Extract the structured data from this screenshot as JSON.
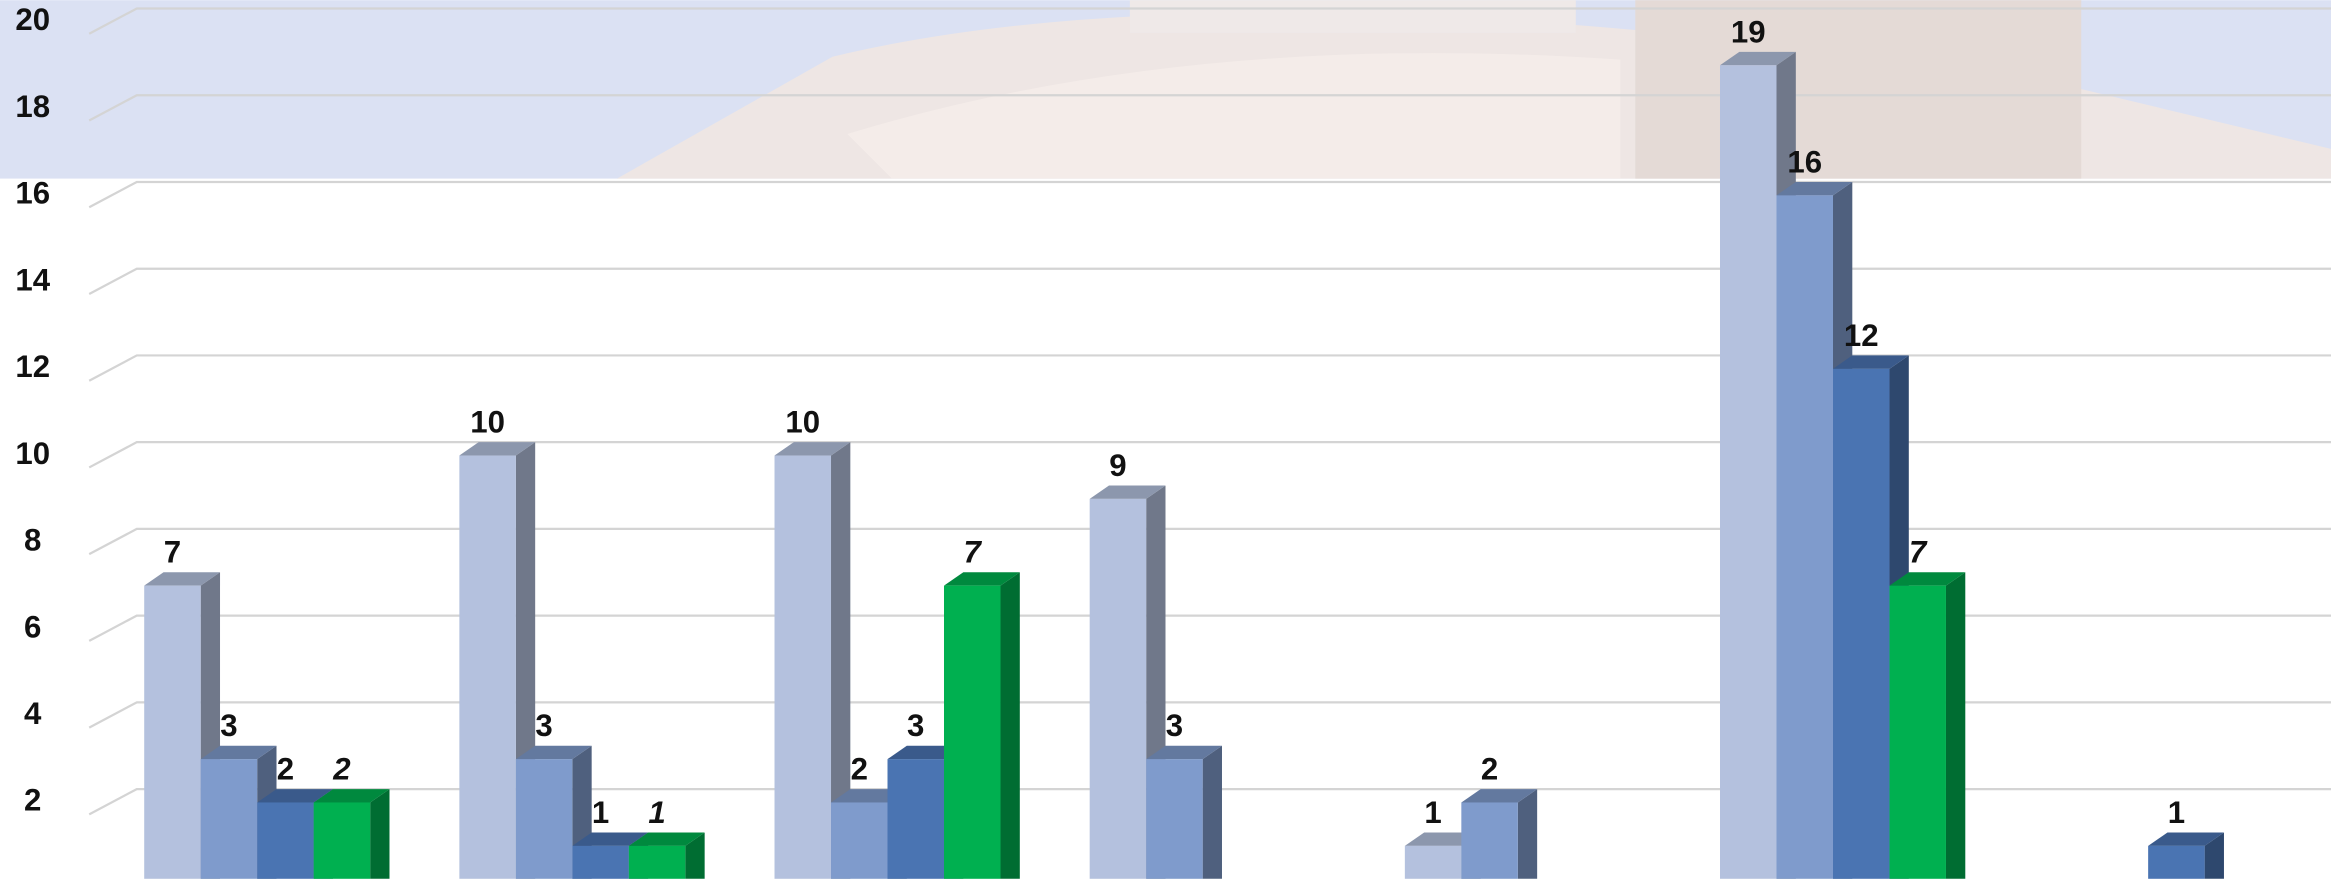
{
  "chart_data": {
    "type": "bar3d",
    "categories": [
      null,
      null,
      null,
      null,
      null,
      null,
      null
    ],
    "series": [
      {
        "color": "#b4c1de",
        "values": [
          7,
          10,
          10,
          9,
          1,
          19,
          null
        ]
      },
      {
        "color": "#7f9bcc",
        "values": [
          3,
          3,
          2,
          3,
          2,
          16,
          null
        ]
      },
      {
        "color": "#4a74b2",
        "values": [
          2,
          1,
          3,
          null,
          null,
          12,
          1
        ]
      },
      {
        "color": "#00b050",
        "values": [
          2,
          1,
          7,
          null,
          null,
          7,
          null
        ]
      }
    ],
    "ylim": [
      0.24,
      20.5
    ],
    "yticks": [
      2,
      4,
      6,
      8,
      10,
      12,
      14,
      16,
      18,
      20
    ],
    "grid": true
  }
}
